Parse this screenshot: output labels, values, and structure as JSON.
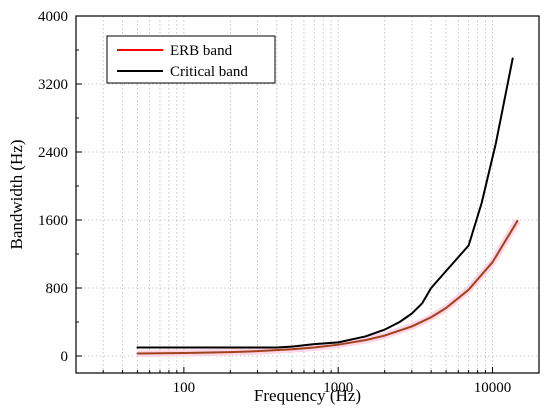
{
  "chart_data": {
    "type": "line",
    "xlabel": "Frequency (Hz)",
    "ylabel": "Bandwidth (Hz)",
    "xscale": "log",
    "xlim": [
      20,
      20000
    ],
    "ylim": [
      -200,
      4000
    ],
    "xticks": [
      100,
      1000,
      10000
    ],
    "xtick_labels": [
      "100",
      "1000",
      "10000"
    ],
    "yticks": [
      0,
      800,
      1600,
      2400,
      3200,
      4000
    ],
    "ytick_labels": [
      "0",
      "800",
      "1600",
      "2400",
      "3200",
      "4000"
    ],
    "grid": "dotted",
    "legend": "top-left",
    "series": [
      {
        "name": "ERB band",
        "color": "#ff0000",
        "x": [
          50,
          100,
          200,
          300,
          500,
          700,
          1000,
          1500,
          2000,
          3000,
          4000,
          5000,
          7000,
          10000,
          14500
        ],
        "y": [
          30,
          35,
          46,
          57,
          79,
          100,
          133,
          187,
          240,
          348,
          456,
          565,
          780,
          1104,
          1590
        ]
      },
      {
        "name": "Critical band",
        "color": "#000000",
        "x": [
          50,
          100,
          200,
          300,
          400,
          500,
          700,
          1000,
          1500,
          2000,
          2500,
          3000,
          3500,
          4000,
          5000,
          7000,
          8500,
          10500,
          13500
        ],
        "y": [
          100,
          100,
          100,
          100,
          100,
          110,
          140,
          160,
          230,
          310,
          400,
          500,
          620,
          800,
          1000,
          1300,
          1800,
          2500,
          3500
        ]
      }
    ]
  }
}
